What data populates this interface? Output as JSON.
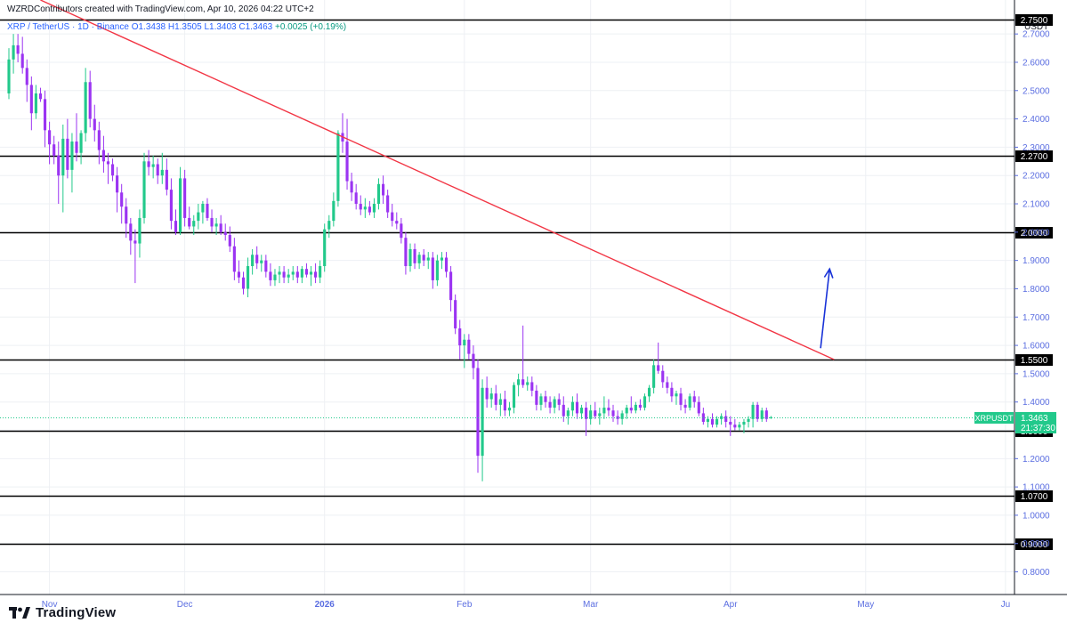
{
  "header": {
    "caption": "WZRDContributors created with TradingView.com, Apr 10, 2026 04:22 UTC+2",
    "symbol_desc": "XRP / TetherUS · 1D · Binance",
    "open": "O1.3438",
    "high": "H1.3505",
    "low": "L1.3403",
    "close": "C1.3463",
    "change": "+0.0025 (+0.19%)"
  },
  "price_axis": {
    "currency": "USDT",
    "ticks": [
      "2.7000",
      "2.6000",
      "2.5000",
      "2.4000",
      "2.3000",
      "2.2000",
      "2.1000",
      "2.0000",
      "1.9000",
      "1.8000",
      "1.7000",
      "1.6000",
      "1.5000",
      "1.4000",
      "1.3000",
      "1.2000",
      "1.1000",
      "1.0000",
      "0.9000",
      "0.8000"
    ]
  },
  "time_axis": {
    "labels": [
      "Nov",
      "Dec",
      "2026",
      "Feb",
      "Mar",
      "Apr",
      "May",
      "Ju"
    ]
  },
  "last_price": {
    "ticker": "XRPUSDT",
    "price": "1.3463",
    "countdown": "21:37:30"
  },
  "brand": {
    "name": "TradingView"
  },
  "colors": {
    "up": "#22c98b",
    "down": "#9b34f2",
    "level": "#000000",
    "trendline": "#f23645",
    "arrow": "#1832d8",
    "grid": "#eef0f4",
    "axis_text": "#5b6ee1",
    "last_price_bg": "#22c98b"
  },
  "chart_data": {
    "type": "candlestick",
    "interval": "1D",
    "y_range": [
      0.72,
      2.82
    ],
    "x_range": [
      "2025-10-23",
      "2026-06-03"
    ],
    "horizontal_levels": [
      {
        "price": 2.75,
        "label": "2.7500"
      },
      {
        "price": 2.27,
        "label": "2.2700"
      },
      {
        "price": 2.0,
        "label": "2.0000"
      },
      {
        "price": 1.55,
        "label": "1.5500"
      },
      {
        "price": 1.3,
        "label": "1.3000"
      },
      {
        "price": 1.07,
        "label": "1.0700"
      },
      {
        "price": 0.9,
        "label": "0.9000"
      }
    ],
    "trendline": {
      "from": {
        "date": "2025-10-30",
        "price": 2.82
      },
      "to": {
        "date": "2026-04-24",
        "price": 1.55
      }
    },
    "arrow": {
      "from": {
        "date": "2026-04-21",
        "price": 1.59
      },
      "to": {
        "date": "2026-04-23",
        "price": 1.87
      }
    },
    "candles": [
      [
        "2025-10-23",
        2.49,
        2.65,
        2.47,
        2.61
      ],
      [
        "2025-10-24",
        2.61,
        2.7,
        2.56,
        2.66
      ],
      [
        "2025-10-25",
        2.66,
        2.7,
        2.6,
        2.63
      ],
      [
        "2025-10-26",
        2.63,
        2.69,
        2.56,
        2.58
      ],
      [
        "2025-10-27",
        2.58,
        2.61,
        2.46,
        2.52
      ],
      [
        "2025-10-28",
        2.52,
        2.55,
        2.36,
        2.42
      ],
      [
        "2025-10-29",
        2.42,
        2.52,
        2.4,
        2.49
      ],
      [
        "2025-10-30",
        2.49,
        2.51,
        2.46,
        2.47
      ],
      [
        "2025-10-31",
        2.47,
        2.5,
        2.3,
        2.36
      ],
      [
        "2025-11-01",
        2.36,
        2.39,
        2.24,
        2.31
      ],
      [
        "2025-11-02",
        2.31,
        2.34,
        2.24,
        2.27
      ],
      [
        "2025-11-03",
        2.27,
        2.32,
        2.1,
        2.2
      ],
      [
        "2025-11-04",
        2.2,
        2.38,
        2.07,
        2.33
      ],
      [
        "2025-11-05",
        2.33,
        2.4,
        2.19,
        2.22
      ],
      [
        "2025-11-06",
        2.22,
        2.35,
        2.14,
        2.32
      ],
      [
        "2025-11-07",
        2.32,
        2.42,
        2.25,
        2.28
      ],
      [
        "2025-11-08",
        2.28,
        2.36,
        2.24,
        2.35
      ],
      [
        "2025-11-09",
        2.35,
        2.58,
        2.32,
        2.53
      ],
      [
        "2025-11-10",
        2.53,
        2.57,
        2.37,
        2.4
      ],
      [
        "2025-11-11",
        2.4,
        2.45,
        2.32,
        2.36
      ],
      [
        "2025-11-12",
        2.36,
        2.39,
        2.24,
        2.29
      ],
      [
        "2025-11-13",
        2.29,
        2.34,
        2.21,
        2.25
      ],
      [
        "2025-11-14",
        2.25,
        2.28,
        2.17,
        2.24
      ],
      [
        "2025-11-15",
        2.24,
        2.26,
        2.18,
        2.2
      ],
      [
        "2025-11-16",
        2.2,
        2.23,
        2.07,
        2.14
      ],
      [
        "2025-11-17",
        2.14,
        2.17,
        2.03,
        2.09
      ],
      [
        "2025-11-18",
        2.09,
        2.12,
        1.98,
        2.03
      ],
      [
        "2025-11-19",
        2.03,
        2.05,
        1.92,
        1.97
      ],
      [
        "2025-11-20",
        1.97,
        2.01,
        1.82,
        1.96
      ],
      [
        "2025-11-21",
        1.96,
        2.08,
        1.91,
        2.05
      ],
      [
        "2025-11-22",
        2.05,
        2.28,
        2.03,
        2.25
      ],
      [
        "2025-11-23",
        2.25,
        2.29,
        2.2,
        2.23
      ],
      [
        "2025-11-24",
        2.23,
        2.27,
        2.19,
        2.24
      ],
      [
        "2025-11-25",
        2.24,
        2.26,
        2.17,
        2.2
      ],
      [
        "2025-11-26",
        2.2,
        2.28,
        2.17,
        2.22
      ],
      [
        "2025-11-27",
        2.22,
        2.26,
        2.13,
        2.15
      ],
      [
        "2025-11-28",
        2.15,
        2.19,
        2.01,
        2.04
      ],
      [
        "2025-11-29",
        2.04,
        2.08,
        1.99,
        2.0
      ],
      [
        "2025-11-30",
        2.0,
        2.23,
        1.99,
        2.19
      ],
      [
        "2025-12-01",
        2.19,
        2.22,
        2.02,
        2.05
      ],
      [
        "2025-12-02",
        2.05,
        2.09,
        2.01,
        2.02
      ],
      [
        "2025-12-03",
        2.02,
        2.06,
        1.99,
        2.04
      ],
      [
        "2025-12-04",
        2.04,
        2.1,
        2.01,
        2.07
      ],
      [
        "2025-12-05",
        2.07,
        2.11,
        2.03,
        2.1
      ],
      [
        "2025-12-06",
        2.1,
        2.12,
        2.04,
        2.05
      ],
      [
        "2025-12-07",
        2.05,
        2.08,
        2.0,
        2.02
      ],
      [
        "2025-12-08",
        2.02,
        2.05,
        1.99,
        2.03
      ],
      [
        "2025-12-09",
        2.03,
        2.06,
        1.99,
        2.0
      ],
      [
        "2025-12-10",
        2.0,
        2.03,
        1.97,
        1.99
      ],
      [
        "2025-12-11",
        1.99,
        2.02,
        1.93,
        1.95
      ],
      [
        "2025-12-12",
        1.95,
        1.98,
        1.83,
        1.86
      ],
      [
        "2025-12-13",
        1.86,
        1.9,
        1.82,
        1.84
      ],
      [
        "2025-12-14",
        1.84,
        1.86,
        1.78,
        1.8
      ],
      [
        "2025-12-15",
        1.8,
        1.91,
        1.77,
        1.88
      ],
      [
        "2025-12-16",
        1.88,
        1.94,
        1.85,
        1.92
      ],
      [
        "2025-12-17",
        1.92,
        1.95,
        1.87,
        1.89
      ],
      [
        "2025-12-18",
        1.89,
        1.92,
        1.86,
        1.9
      ],
      [
        "2025-12-19",
        1.9,
        1.92,
        1.84,
        1.86
      ],
      [
        "2025-12-20",
        1.86,
        1.89,
        1.81,
        1.83
      ],
      [
        "2025-12-21",
        1.83,
        1.87,
        1.81,
        1.85
      ],
      [
        "2025-12-22",
        1.85,
        1.88,
        1.82,
        1.86
      ],
      [
        "2025-12-23",
        1.86,
        1.88,
        1.82,
        1.84
      ],
      [
        "2025-12-24",
        1.84,
        1.87,
        1.82,
        1.85
      ],
      [
        "2025-12-25",
        1.85,
        1.88,
        1.83,
        1.86
      ],
      [
        "2025-12-26",
        1.86,
        1.88,
        1.82,
        1.84
      ],
      [
        "2025-12-27",
        1.84,
        1.88,
        1.82,
        1.87
      ],
      [
        "2025-12-28",
        1.87,
        1.89,
        1.84,
        1.85
      ],
      [
        "2025-12-29",
        1.85,
        1.88,
        1.81,
        1.86
      ],
      [
        "2025-12-30",
        1.86,
        1.89,
        1.82,
        1.84
      ],
      [
        "2025-12-31",
        1.84,
        1.9,
        1.82,
        1.88
      ],
      [
        "2026-01-01",
        1.88,
        2.03,
        1.86,
        2.01
      ],
      [
        "2026-01-02",
        2.01,
        2.06,
        1.98,
        2.04
      ],
      [
        "2026-01-03",
        2.04,
        2.14,
        2.02,
        2.11
      ],
      [
        "2026-01-04",
        2.11,
        2.36,
        2.09,
        2.35
      ],
      [
        "2026-01-05",
        2.35,
        2.42,
        2.28,
        2.32
      ],
      [
        "2026-01-06",
        2.32,
        2.4,
        2.15,
        2.18
      ],
      [
        "2026-01-07",
        2.18,
        2.21,
        2.11,
        2.14
      ],
      [
        "2026-01-08",
        2.14,
        2.17,
        2.08,
        2.1
      ],
      [
        "2026-01-09",
        2.1,
        2.13,
        2.06,
        2.08
      ],
      [
        "2026-01-10",
        2.08,
        2.12,
        2.05,
        2.09
      ],
      [
        "2026-01-11",
        2.09,
        2.11,
        2.06,
        2.07
      ],
      [
        "2026-01-12",
        2.07,
        2.12,
        2.05,
        2.1
      ],
      [
        "2026-01-13",
        2.1,
        2.19,
        2.08,
        2.17
      ],
      [
        "2026-01-14",
        2.17,
        2.2,
        2.1,
        2.13
      ],
      [
        "2026-01-15",
        2.13,
        2.15,
        2.05,
        2.07
      ],
      [
        "2026-01-16",
        2.07,
        2.1,
        2.02,
        2.04
      ],
      [
        "2026-01-17",
        2.04,
        2.07,
        2.01,
        2.03
      ],
      [
        "2026-01-18",
        2.03,
        2.05,
        1.96,
        1.98
      ],
      [
        "2026-01-19",
        1.98,
        2.0,
        1.85,
        1.88
      ],
      [
        "2026-01-20",
        1.88,
        1.96,
        1.86,
        1.94
      ],
      [
        "2026-01-21",
        1.94,
        1.96,
        1.87,
        1.89
      ],
      [
        "2026-01-22",
        1.89,
        1.93,
        1.87,
        1.92
      ],
      [
        "2026-01-23",
        1.92,
        1.94,
        1.88,
        1.9
      ],
      [
        "2026-01-24",
        1.9,
        1.93,
        1.87,
        1.91
      ],
      [
        "2026-01-25",
        1.91,
        1.93,
        1.8,
        1.83
      ],
      [
        "2026-01-26",
        1.83,
        1.92,
        1.81,
        1.9
      ],
      [
        "2026-01-27",
        1.9,
        1.93,
        1.87,
        1.91
      ],
      [
        "2026-01-28",
        1.91,
        1.93,
        1.84,
        1.86
      ],
      [
        "2026-01-29",
        1.86,
        1.88,
        1.72,
        1.76
      ],
      [
        "2026-01-30",
        1.76,
        1.78,
        1.64,
        1.66
      ],
      [
        "2026-01-31",
        1.66,
        1.69,
        1.55,
        1.6
      ],
      [
        "2026-02-01",
        1.6,
        1.64,
        1.52,
        1.62
      ],
      [
        "2026-02-02",
        1.62,
        1.64,
        1.55,
        1.57
      ],
      [
        "2026-02-03",
        1.57,
        1.6,
        1.48,
        1.52
      ],
      [
        "2026-02-04",
        1.52,
        1.55,
        1.15,
        1.21
      ],
      [
        "2026-02-05",
        1.21,
        1.48,
        1.12,
        1.45
      ],
      [
        "2026-02-06",
        1.45,
        1.49,
        1.38,
        1.41
      ],
      [
        "2026-02-07",
        1.41,
        1.45,
        1.38,
        1.43
      ],
      [
        "2026-02-08",
        1.43,
        1.46,
        1.37,
        1.39
      ],
      [
        "2026-02-09",
        1.39,
        1.43,
        1.35,
        1.41
      ],
      [
        "2026-02-10",
        1.41,
        1.44,
        1.35,
        1.37
      ],
      [
        "2026-02-11",
        1.37,
        1.4,
        1.35,
        1.38
      ],
      [
        "2026-02-12",
        1.38,
        1.47,
        1.36,
        1.46
      ],
      [
        "2026-02-13",
        1.46,
        1.5,
        1.42,
        1.48
      ],
      [
        "2026-02-14",
        1.48,
        1.67,
        1.45,
        1.46
      ],
      [
        "2026-02-15",
        1.46,
        1.49,
        1.44,
        1.47
      ],
      [
        "2026-02-16",
        1.47,
        1.49,
        1.42,
        1.44
      ],
      [
        "2026-02-17",
        1.44,
        1.46,
        1.37,
        1.39
      ],
      [
        "2026-02-18",
        1.39,
        1.43,
        1.37,
        1.42
      ],
      [
        "2026-02-19",
        1.42,
        1.44,
        1.38,
        1.4
      ],
      [
        "2026-02-20",
        1.4,
        1.42,
        1.36,
        1.38
      ],
      [
        "2026-02-21",
        1.38,
        1.42,
        1.36,
        1.41
      ],
      [
        "2026-02-22",
        1.41,
        1.43,
        1.37,
        1.39
      ],
      [
        "2026-02-23",
        1.39,
        1.42,
        1.33,
        1.35
      ],
      [
        "2026-02-24",
        1.35,
        1.38,
        1.32,
        1.37
      ],
      [
        "2026-02-25",
        1.37,
        1.42,
        1.35,
        1.4
      ],
      [
        "2026-02-26",
        1.4,
        1.43,
        1.34,
        1.36
      ],
      [
        "2026-02-27",
        1.36,
        1.39,
        1.34,
        1.38
      ],
      [
        "2026-02-28",
        1.38,
        1.4,
        1.28,
        1.34
      ],
      [
        "2026-03-01",
        1.34,
        1.39,
        1.32,
        1.37
      ],
      [
        "2026-03-02",
        1.37,
        1.4,
        1.34,
        1.35
      ],
      [
        "2026-03-03",
        1.35,
        1.38,
        1.32,
        1.36
      ],
      [
        "2026-03-04",
        1.36,
        1.42,
        1.34,
        1.38
      ],
      [
        "2026-03-05",
        1.38,
        1.41,
        1.35,
        1.37
      ],
      [
        "2026-03-06",
        1.37,
        1.39,
        1.33,
        1.35
      ],
      [
        "2026-03-07",
        1.35,
        1.37,
        1.32,
        1.34
      ],
      [
        "2026-03-08",
        1.34,
        1.37,
        1.32,
        1.36
      ],
      [
        "2026-03-09",
        1.36,
        1.39,
        1.34,
        1.38
      ],
      [
        "2026-03-10",
        1.38,
        1.42,
        1.36,
        1.37
      ],
      [
        "2026-03-11",
        1.37,
        1.4,
        1.36,
        1.39
      ],
      [
        "2026-03-12",
        1.39,
        1.41,
        1.37,
        1.38
      ],
      [
        "2026-03-13",
        1.38,
        1.43,
        1.37,
        1.42
      ],
      [
        "2026-03-14",
        1.42,
        1.46,
        1.4,
        1.45
      ],
      [
        "2026-03-15",
        1.45,
        1.55,
        1.43,
        1.53
      ],
      [
        "2026-03-16",
        1.53,
        1.61,
        1.5,
        1.51
      ],
      [
        "2026-03-17",
        1.51,
        1.53,
        1.45,
        1.47
      ],
      [
        "2026-03-18",
        1.47,
        1.49,
        1.43,
        1.45
      ],
      [
        "2026-03-19",
        1.45,
        1.47,
        1.4,
        1.42
      ],
      [
        "2026-03-20",
        1.42,
        1.44,
        1.39,
        1.43
      ],
      [
        "2026-03-21",
        1.43,
        1.45,
        1.37,
        1.39
      ],
      [
        "2026-03-22",
        1.39,
        1.41,
        1.36,
        1.38
      ],
      [
        "2026-03-23",
        1.38,
        1.43,
        1.37,
        1.42
      ],
      [
        "2026-03-24",
        1.42,
        1.44,
        1.38,
        1.4
      ],
      [
        "2026-03-25",
        1.4,
        1.42,
        1.35,
        1.36
      ],
      [
        "2026-03-26",
        1.36,
        1.38,
        1.32,
        1.33
      ],
      [
        "2026-03-27",
        1.33,
        1.35,
        1.31,
        1.34
      ],
      [
        "2026-03-28",
        1.34,
        1.36,
        1.31,
        1.32
      ],
      [
        "2026-03-29",
        1.32,
        1.35,
        1.31,
        1.34
      ],
      [
        "2026-03-30",
        1.34,
        1.36,
        1.32,
        1.35
      ],
      [
        "2026-03-31",
        1.35,
        1.37,
        1.31,
        1.33
      ],
      [
        "2026-04-01",
        1.33,
        1.35,
        1.28,
        1.32
      ],
      [
        "2026-04-02",
        1.32,
        1.34,
        1.3,
        1.31
      ],
      [
        "2026-04-03",
        1.31,
        1.33,
        1.3,
        1.32
      ],
      [
        "2026-04-04",
        1.32,
        1.34,
        1.29,
        1.33
      ],
      [
        "2026-04-05",
        1.33,
        1.35,
        1.31,
        1.34
      ],
      [
        "2026-04-06",
        1.34,
        1.4,
        1.31,
        1.39
      ],
      [
        "2026-04-07",
        1.39,
        1.4,
        1.33,
        1.34
      ],
      [
        "2026-04-08",
        1.34,
        1.38,
        1.33,
        1.37
      ],
      [
        "2026-04-09",
        1.37,
        1.38,
        1.33,
        1.34
      ],
      [
        "2026-04-10",
        1.3438,
        1.3505,
        1.3403,
        1.3463
      ]
    ]
  }
}
